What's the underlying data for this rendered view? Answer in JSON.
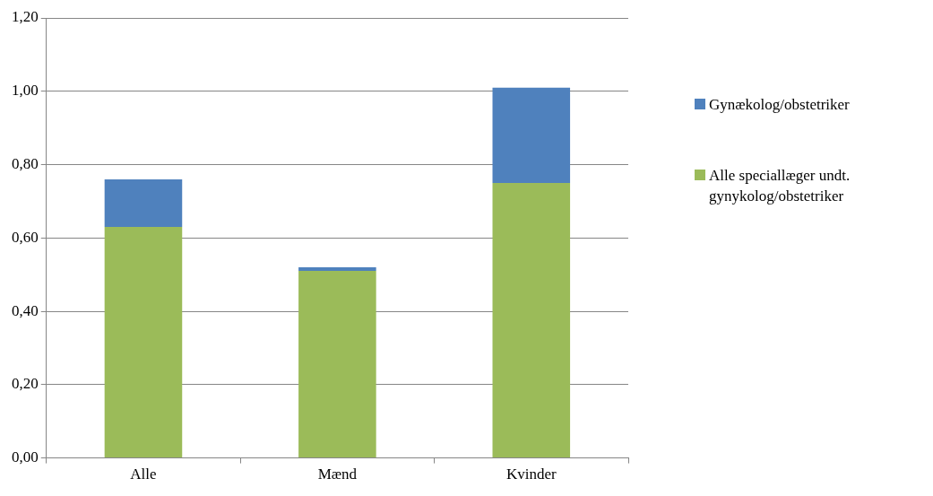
{
  "chart_data": {
    "type": "bar",
    "stacked": true,
    "categories": [
      "Alle",
      "Mænd",
      "Kvinder"
    ],
    "series": [
      {
        "name": "Alle speciallæger undt. gynykolog/obstetriker",
        "color": "#9bbb59",
        "values": [
          0.63,
          0.51,
          0.75
        ]
      },
      {
        "name": "Gynækolog/obstetriker",
        "color": "#4f81bd",
        "values": [
          0.13,
          0.01,
          0.26
        ]
      }
    ],
    "ylim": [
      0,
      1.2
    ],
    "yticks": [
      {
        "value": 0,
        "label": "0,00"
      },
      {
        "value": 0.2,
        "label": "0,20"
      },
      {
        "value": 0.4,
        "label": "0,40"
      },
      {
        "value": 0.6,
        "label": "0,60"
      },
      {
        "value": 0.8,
        "label": "0,80"
      },
      {
        "value": 1,
        "label": "1,00"
      },
      {
        "value": 1.2,
        "label": "1,20"
      }
    ],
    "grid": "y",
    "legend": "right"
  }
}
